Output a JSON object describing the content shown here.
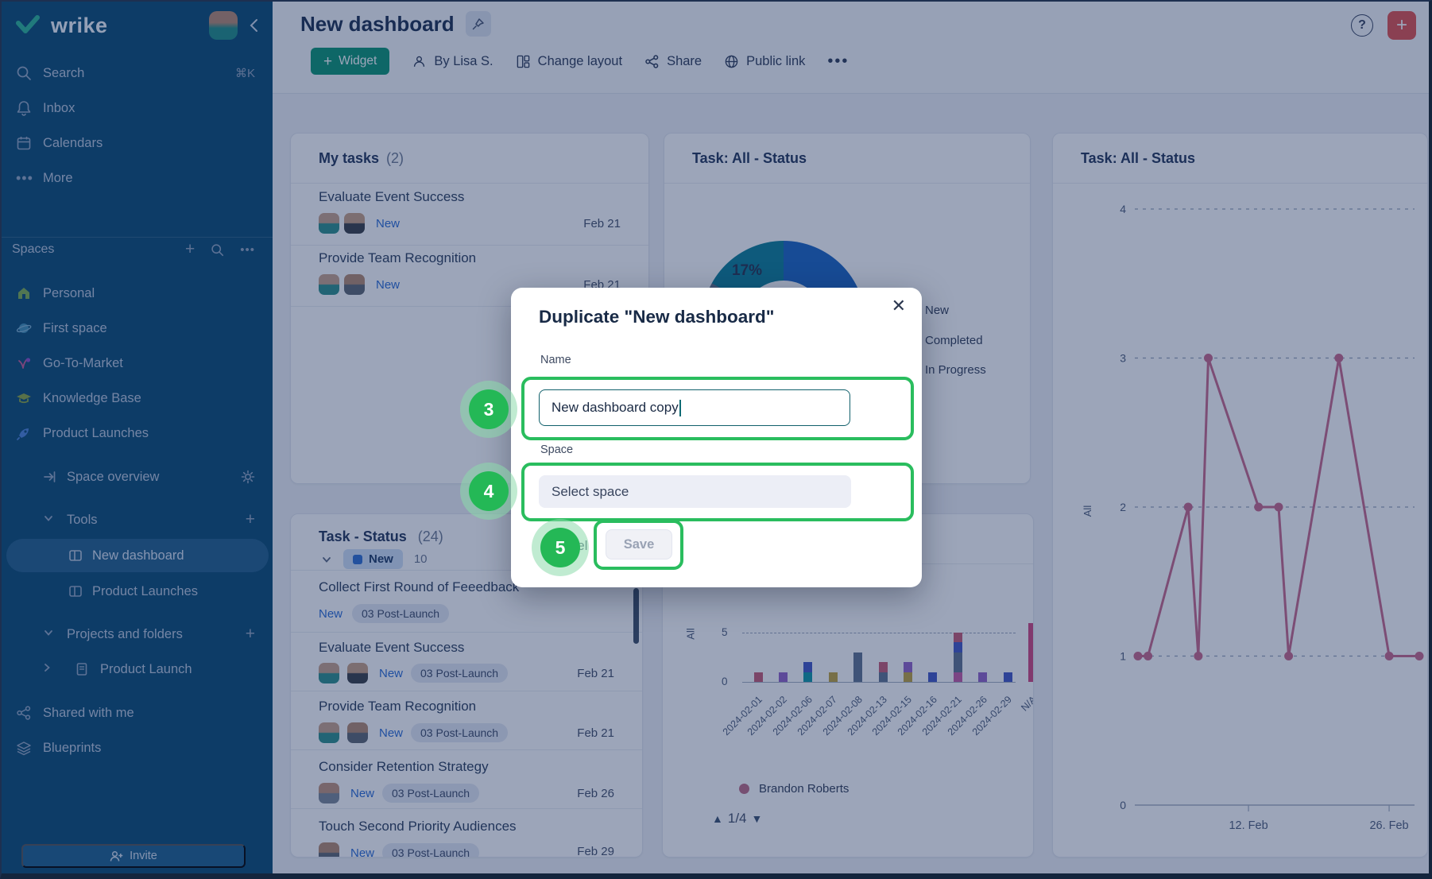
{
  "sidebar": {
    "logo_text": "wrike",
    "menu": [
      {
        "label": "Search",
        "shortcut": "⌘K"
      },
      {
        "label": "Inbox"
      },
      {
        "label": "Calendars"
      },
      {
        "label": "More"
      }
    ],
    "spaces_header": "Spaces",
    "spaces": [
      {
        "label": "Personal"
      },
      {
        "label": "First space"
      },
      {
        "label": "Go-To-Market"
      },
      {
        "label": "Knowledge Base"
      },
      {
        "label": "Product Launches"
      }
    ],
    "space_overview": "Space overview",
    "tools_header": "Tools",
    "tools": [
      {
        "label": "New dashboard"
      },
      {
        "label": "Product Launches"
      }
    ],
    "projects_header": "Projects and folders",
    "projects": [
      {
        "label": "Product Launch"
      }
    ],
    "shared_with_me": "Shared with me",
    "blueprints": "Blueprints",
    "invite_button": "Invite"
  },
  "header": {
    "title": "New dashboard",
    "widget_button": "Widget",
    "by_author": "By Lisa S.",
    "change_layout": "Change layout",
    "share": "Share",
    "public_link": "Public link",
    "help": "?"
  },
  "widgets": {
    "my_tasks": {
      "title": "My tasks",
      "count": "(2)",
      "rows": [
        {
          "title": "Evaluate Event Success",
          "status": "New",
          "date": "Feb 21"
        },
        {
          "title": "Provide Team Recognition",
          "status": "New",
          "date": "Feb 21"
        }
      ]
    },
    "task_status": {
      "title": "Task - Status",
      "count": "(24)",
      "group_status": "New",
      "group_count": "10",
      "rows": [
        {
          "title": "Collect First Round of Feeedback",
          "status": "New",
          "tag": "03 Post-Launch",
          "date": ""
        },
        {
          "title": "Evaluate Event Success",
          "status": "New",
          "tag": "03 Post-Launch",
          "date": "Feb 21"
        },
        {
          "title": "Provide Team Recognition",
          "status": "New",
          "tag": "03 Post-Launch",
          "date": "Feb 21"
        },
        {
          "title": "Consider Retention Strategy",
          "status": "New",
          "tag": "03 Post-Launch",
          "date": "Feb 26"
        },
        {
          "title": "Touch Second Priority Audiences",
          "status": "New",
          "tag": "03 Post-Launch",
          "date": "Feb 29"
        }
      ]
    },
    "bar": {
      "pagination": "1/4"
    }
  },
  "modal": {
    "title": "Duplicate \"New dashboard\"",
    "name_label": "Name",
    "name_value": "New dashboard copy",
    "space_label": "Space",
    "space_placeholder": "Select space",
    "cancel_button": "Cancel",
    "save_button": "Save"
  },
  "annotations": {
    "step3": "3",
    "step4": "4",
    "step5": "5",
    "accent_color": "#2abd5e"
  },
  "chart_data": [
    {
      "name": "status-donut",
      "type": "pie",
      "title": "Task: All - Status",
      "slice_label": "17%",
      "slices": [
        {
          "label": "New",
          "pct": 55,
          "color": "#1a64c2"
        },
        {
          "label": "Completed",
          "pct": 28,
          "color": "#5e7085"
        },
        {
          "label": "In Progress",
          "pct": 17,
          "color": "#0c7f97"
        }
      ],
      "legend": [
        "New",
        "Completed",
        "In Progress"
      ],
      "legend_position": "right"
    },
    {
      "name": "tasks-by-date-bars",
      "type": "bar",
      "stacked": true,
      "ylabel": "All",
      "yticks": [
        0,
        5
      ],
      "ylim": [
        0,
        6
      ],
      "grid": "dashed line at y=5",
      "categories": [
        "2024-02-01",
        "2024-02-02",
        "2024-02-06",
        "2024-02-07",
        "2024-02-08",
        "2024-02-13",
        "2024-02-15",
        "2024-02-16",
        "2024-02-21",
        "2024-02-26",
        "2024-02-29",
        "N/A"
      ],
      "totals": [
        1,
        1,
        2,
        1,
        3,
        2,
        2,
        1,
        5,
        1,
        1,
        6
      ],
      "stacks": [
        [
          {
            "color": "#c75b74",
            "v": 1
          }
        ],
        [
          {
            "color": "#9363c9",
            "v": 1
          }
        ],
        [
          {
            "color": "#0f98a5",
            "v": 1
          },
          {
            "color": "#4256c4",
            "v": 1
          }
        ],
        [
          {
            "color": "#c0a23d",
            "v": 1
          }
        ],
        [
          {
            "color": "#5f7390",
            "v": 3
          }
        ],
        [
          {
            "color": "#5f7390",
            "v": 1
          },
          {
            "color": "#c75b74",
            "v": 1
          }
        ],
        [
          {
            "color": "#c0a23d",
            "v": 1
          },
          {
            "color": "#9363c9",
            "v": 1
          }
        ],
        [
          {
            "color": "#4256c4",
            "v": 1
          }
        ],
        [
          {
            "color": "#c75ba4",
            "v": 1
          },
          {
            "color": "#5f7390",
            "v": 2
          },
          {
            "color": "#4256c4",
            "v": 1
          },
          {
            "color": "#c75b74",
            "v": 1
          }
        ],
        [
          {
            "color": "#9363c9",
            "v": 1
          }
        ],
        [
          {
            "color": "#4256c4",
            "v": 1
          }
        ],
        [
          {
            "color": "#d1457f",
            "v": 6
          }
        ]
      ],
      "legend": [
        {
          "label": "Brandon Roberts",
          "color": "#bd6c85"
        }
      ],
      "pagination": "1/4"
    },
    {
      "name": "status-line",
      "type": "line",
      "title": "Task: All - Status",
      "color": "#c9688a",
      "ylabel": "All",
      "ylim": [
        0,
        4
      ],
      "yticks": [
        0,
        1,
        2,
        3,
        4
      ],
      "grid": "dashed horizontal at 1,2,3,4",
      "x_days_feb": [
        1,
        2,
        6,
        7,
        8,
        13,
        15,
        16,
        21,
        26,
        29
      ],
      "values": [
        1,
        1,
        2,
        1,
        3,
        2,
        2,
        1,
        3,
        1,
        1
      ],
      "xticks": [
        {
          "day": 12,
          "label": "12. Feb"
        },
        {
          "day": 26,
          "label": "26. Feb"
        }
      ]
    }
  ]
}
